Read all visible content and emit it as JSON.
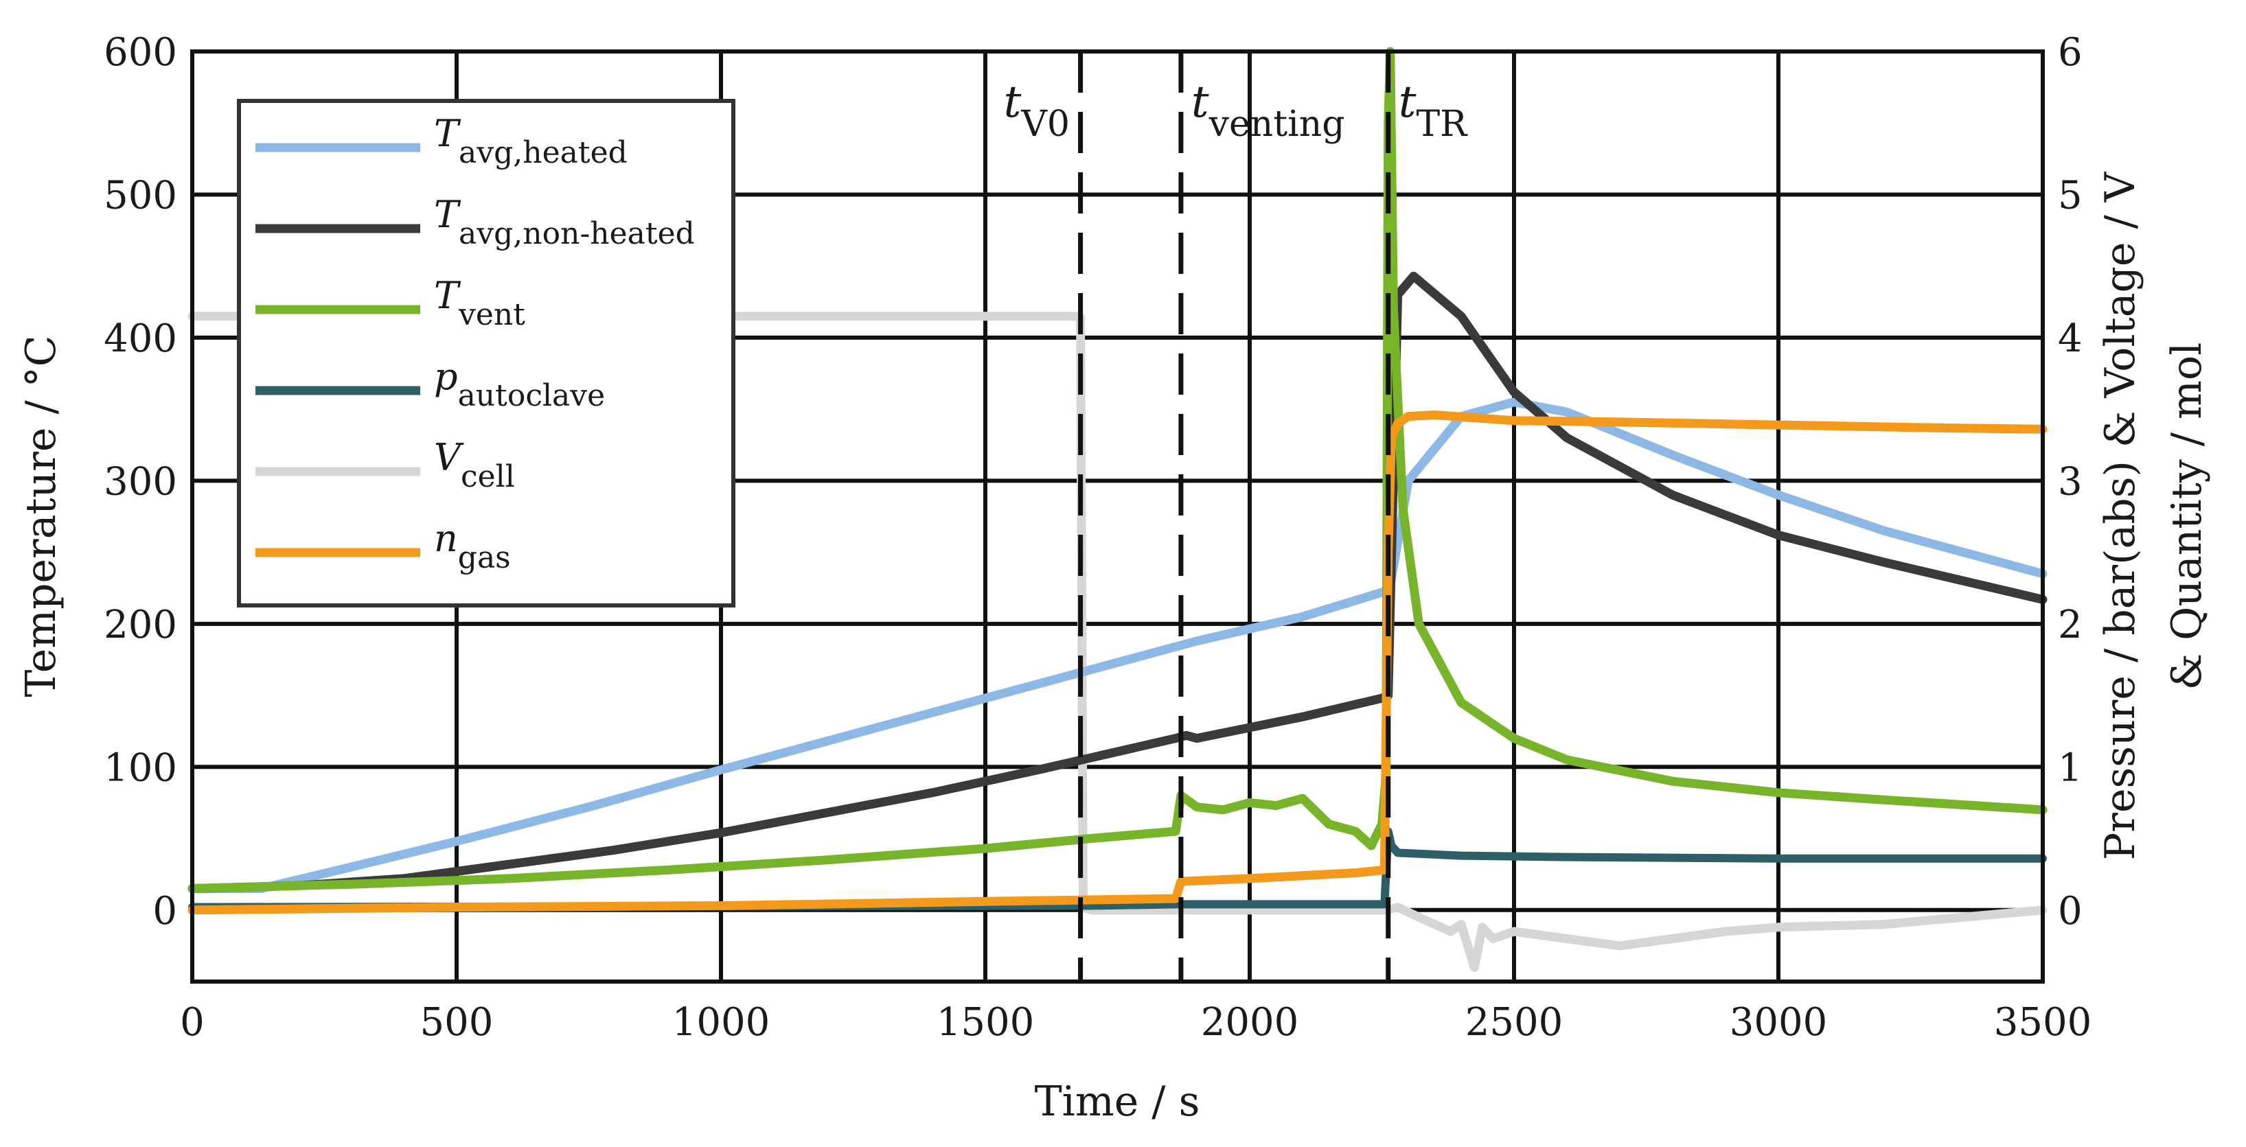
{
  "chart_data": {
    "type": "line",
    "title": "",
    "xlabel": "Time / s",
    "ylabel_left": "Temperature / °C",
    "ylabel_right_line1": "Pressure / bar(abs)  &  Voltage / V",
    "ylabel_right_line2": "&  Quantity / mol",
    "xlim": [
      0,
      3500
    ],
    "ylim_left": [
      -50,
      600
    ],
    "ylim_right": [
      -0.5,
      6
    ],
    "x_ticks": [
      0,
      500,
      1000,
      1500,
      2000,
      2500,
      3000,
      3500
    ],
    "x_tick_labels": [
      "0",
      "500",
      "1000",
      "1500",
      "2000",
      "2500",
      "3000",
      "3500"
    ],
    "y_left_ticks": [
      0,
      100,
      200,
      300,
      400,
      500,
      600
    ],
    "y_left_tick_labels": [
      "0",
      "100",
      "200",
      "300",
      "400",
      "500",
      "600"
    ],
    "y_right_ticks": [
      0,
      1,
      2,
      3,
      4,
      5,
      6
    ],
    "y_right_tick_labels": [
      "0",
      "1",
      "2",
      "3",
      "4",
      "5",
      "6"
    ],
    "grid": true,
    "legend_position": "top-left",
    "colors": {
      "T_avg_heated": "#8db8e6",
      "T_avg_nonheated": "#3a3a3a",
      "T_vent": "#78b42a",
      "p_autoclave": "#2e5e66",
      "V_cell": "#d6d6d6",
      "n_gas": "#f39a1c"
    },
    "series": [
      {
        "key": "T_avg_heated",
        "axis": "left",
        "symbol": "T",
        "subscript": "avg,heated",
        "x": [
          0,
          130,
          300,
          500,
          750,
          1000,
          1250,
          1500,
          1750,
          1900,
          2100,
          2250,
          2265,
          2300,
          2400,
          2500,
          2600,
          2800,
          3000,
          3200,
          3500
        ],
        "y": [
          15,
          15,
          30,
          48,
          72,
          98,
          123,
          148,
          173,
          188,
          205,
          222,
          225,
          300,
          345,
          355,
          348,
          318,
          290,
          265,
          235
        ]
      },
      {
        "key": "T_avg_nonheated",
        "axis": "left",
        "symbol": "T",
        "subscript": "avg,non-heated",
        "x": [
          0,
          200,
          400,
          600,
          800,
          1000,
          1200,
          1400,
          1600,
          1860,
          1880,
          1900,
          2100,
          2250,
          2262,
          2280,
          2310,
          2400,
          2500,
          2600,
          2800,
          3000,
          3200,
          3500
        ],
        "y": [
          15,
          17,
          22,
          32,
          42,
          54,
          68,
          82,
          98,
          120,
          122,
          120,
          135,
          148,
          150,
          430,
          443,
          415,
          362,
          330,
          290,
          262,
          243,
          217
        ]
      },
      {
        "key": "T_vent",
        "axis": "left",
        "symbol": "T",
        "subscript": "vent",
        "x": [
          0,
          300,
          600,
          900,
          1200,
          1500,
          1700,
          1860,
          1870,
          1900,
          1950,
          2000,
          2050,
          2100,
          2150,
          2200,
          2230,
          2250,
          2258,
          2262,
          2266,
          2272,
          2290,
          2320,
          2400,
          2500,
          2600,
          2800,
          3000,
          3200,
          3500
        ],
        "y": [
          15,
          18,
          22,
          28,
          35,
          43,
          50,
          55,
          80,
          72,
          70,
          75,
          73,
          78,
          60,
          55,
          45,
          60,
          95,
          550,
          600,
          420,
          280,
          200,
          145,
          120,
          105,
          90,
          82,
          77,
          70
        ]
      },
      {
        "key": "p_autoclave",
        "axis": "right",
        "symbol": "p",
        "subscript": "autoclave",
        "x": [
          0,
          1700,
          1860,
          2200,
          2255,
          2262,
          2268,
          2280,
          2400,
          2600,
          3000,
          3500
        ],
        "y": [
          0.02,
          0.03,
          0.04,
          0.04,
          0.04,
          0.55,
          0.45,
          0.4,
          0.38,
          0.37,
          0.36,
          0.36
        ]
      },
      {
        "key": "V_cell",
        "axis": "right",
        "symbol": "V",
        "subscript": "cell",
        "x": [
          0,
          1670,
          1680,
          1685,
          1700,
          1750,
          1860,
          2260,
          2280,
          2320,
          2380,
          2400,
          2425,
          2440,
          2460,
          2500,
          2600,
          2700,
          2800,
          2900,
          3000,
          3200,
          3500
        ],
        "y": [
          4.15,
          4.15,
          4.14,
          0.02,
          0.0,
          0.0,
          0.0,
          0.0,
          0.02,
          -0.05,
          -0.15,
          -0.1,
          -0.4,
          -0.12,
          -0.2,
          -0.15,
          -0.2,
          -0.25,
          -0.2,
          -0.15,
          -0.12,
          -0.1,
          0.0
        ]
      },
      {
        "key": "n_gas",
        "axis": "right",
        "symbol": "n",
        "subscript": "gas",
        "x": [
          0,
          500,
          1000,
          1500,
          1860,
          1870,
          2000,
          2200,
          2255,
          2262,
          2268,
          2280,
          2300,
          2350,
          2500,
          2700,
          3000,
          3300,
          3500
        ],
        "y": [
          0.0,
          0.02,
          0.03,
          0.06,
          0.08,
          0.2,
          0.22,
          0.26,
          0.28,
          2.5,
          3.3,
          3.4,
          3.45,
          3.46,
          3.42,
          3.41,
          3.39,
          3.37,
          3.36
        ]
      }
    ],
    "event_markers": [
      {
        "x": 1680,
        "symbol": "t",
        "subscript": "V0",
        "subscript_italic": true
      },
      {
        "x": 1870,
        "symbol": "t",
        "subscript": "venting",
        "subscript_italic": false
      },
      {
        "x": 2262,
        "symbol": "t",
        "subscript": "TR",
        "subscript_italic": false
      }
    ]
  }
}
